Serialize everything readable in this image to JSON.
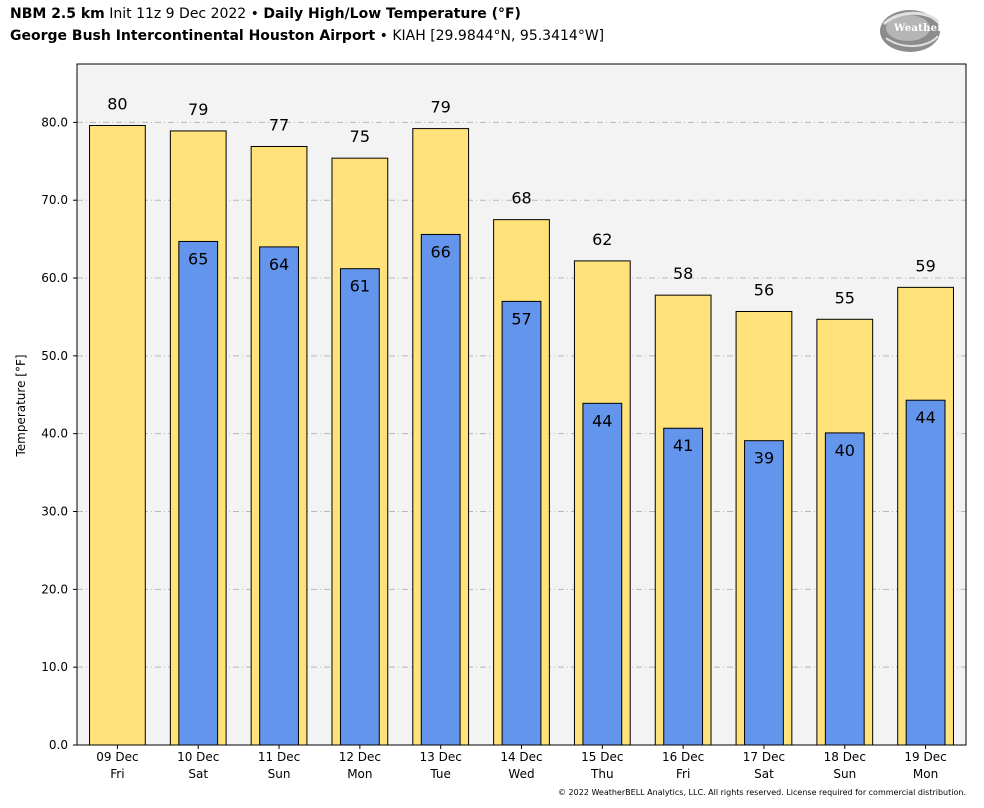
{
  "header": {
    "model": "NBM 2.5 km",
    "init": "Init 11z 9 Dec 2022",
    "bullet": "•",
    "product": "Daily High/Low Temperature (°F)",
    "station_name": "George Bush Intercontinental Houston Airport",
    "station_info": "KIAH [29.9844°N, 95.3414°W]"
  },
  "logo": {
    "text": "WeatherBELL"
  },
  "footer": {
    "copyright": "© 2022 WeatherBELL Analytics, LLC. All rights reserved. License required for commercial distribution."
  },
  "colors": {
    "high_fill": "#ffe37a",
    "low_fill": "#6495ed",
    "plot_bg": "#f3f3f3",
    "grid": "#b8b8b8"
  },
  "chart_data": {
    "type": "bar",
    "ylabel": "Temperature [°F]",
    "ylim": [
      0,
      87.5
    ],
    "yticks": [
      "0.0",
      "10.0",
      "20.0",
      "30.0",
      "40.0",
      "50.0",
      "60.0",
      "70.0",
      "80.0"
    ],
    "grid": true,
    "categories": [
      [
        "09 Dec",
        "Fri"
      ],
      [
        "10 Dec",
        "Sat"
      ],
      [
        "11 Dec",
        "Sun"
      ],
      [
        "12 Dec",
        "Mon"
      ],
      [
        "13 Dec",
        "Tue"
      ],
      [
        "14 Dec",
        "Wed"
      ],
      [
        "15 Dec",
        "Thu"
      ],
      [
        "16 Dec",
        "Fri"
      ],
      [
        "17 Dec",
        "Sat"
      ],
      [
        "18 Dec",
        "Sun"
      ],
      [
        "19 Dec",
        "Mon"
      ]
    ],
    "series": [
      {
        "values": [
          79.6,
          78.9,
          76.9,
          75.4,
          79.2,
          67.5,
          62.2,
          57.8,
          55.7,
          54.7,
          58.8
        ],
        "labels": [
          "80",
          "79",
          "77",
          "75",
          "79",
          "68",
          "62",
          "58",
          "56",
          "55",
          "59"
        ]
      },
      {
        "values": [
          null,
          64.7,
          64.0,
          61.2,
          65.6,
          57.0,
          43.9,
          40.7,
          39.1,
          40.1,
          44.3
        ],
        "labels": [
          null,
          "65",
          "64",
          "61",
          "66",
          "57",
          "44",
          "41",
          "39",
          "40",
          "44"
        ]
      }
    ]
  }
}
